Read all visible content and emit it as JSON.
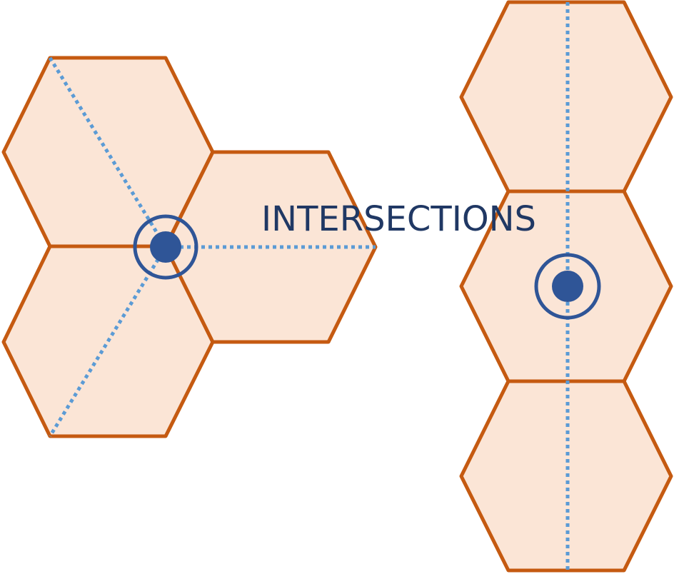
{
  "diagram": {
    "label": "INTERSECTIONS",
    "colors": {
      "hex_fill": "#fbe5d6",
      "hex_stroke": "#c55a11",
      "guide_line": "#5b9bd5",
      "marker": "#2f5597",
      "label_text": "#203864"
    },
    "groups": [
      {
        "name": "three-hex-cluster",
        "hex_count": 3,
        "guide_count": 3,
        "markers": 1
      },
      {
        "name": "vertical-hex-column",
        "hex_count": 3,
        "guide_count": 1,
        "markers": 1
      }
    ]
  }
}
